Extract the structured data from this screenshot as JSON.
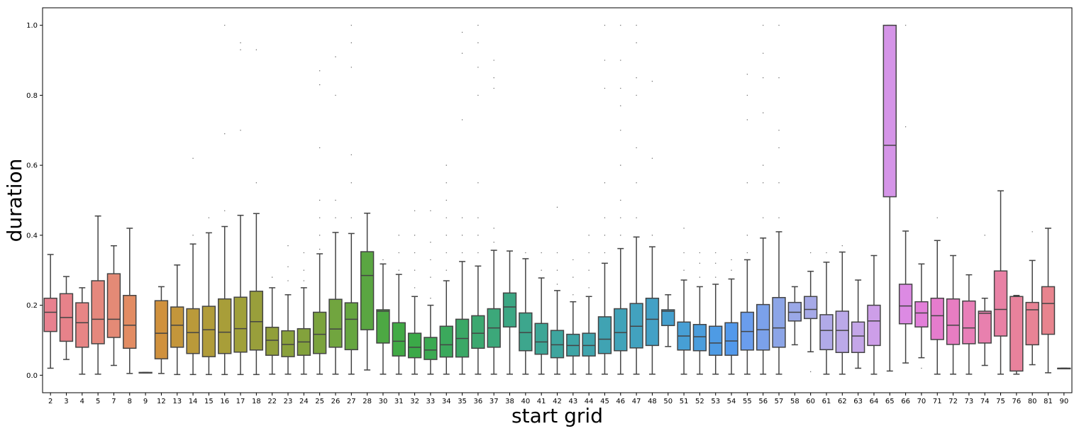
{
  "chart_data": {
    "type": "box",
    "xlabel": "start grid",
    "ylabel": "duration",
    "ylim": [
      -0.05,
      1.05
    ],
    "yticks": [
      0.0,
      0.2,
      0.4,
      0.6,
      0.8,
      1.0
    ],
    "ytick_labels": [
      "0.0",
      "0.2",
      "0.4",
      "0.6",
      "0.8",
      "1.0"
    ],
    "grid": false,
    "legend": "none",
    "categories": [
      "2",
      "3",
      "4",
      "5",
      "7",
      "8",
      "9",
      "12",
      "13",
      "14",
      "15",
      "16",
      "17",
      "18",
      "22",
      "23",
      "24",
      "25",
      "26",
      "27",
      "28",
      "30",
      "31",
      "32",
      "33",
      "34",
      "35",
      "36",
      "37",
      "38",
      "40",
      "41",
      "42",
      "43",
      "44",
      "45",
      "46",
      "47",
      "48",
      "50",
      "51",
      "52",
      "53",
      "54",
      "55",
      "56",
      "57",
      "58",
      "60",
      "61",
      "62",
      "63",
      "64",
      "65",
      "66",
      "70",
      "71",
      "72",
      "73",
      "74",
      "75",
      "76",
      "80",
      "81",
      "90"
    ],
    "boxes": [
      {
        "q1": 0.125,
        "median": 0.18,
        "q3": 0.22,
        "whislo": 0.02,
        "whishi": 0.345,
        "color": "#e8818f",
        "outliers": []
      },
      {
        "q1": 0.097,
        "median": 0.165,
        "q3": 0.233,
        "whislo": 0.045,
        "whishi": 0.282,
        "color": "#e7828a",
        "outliers": []
      },
      {
        "q1": 0.08,
        "median": 0.15,
        "q3": 0.207,
        "whislo": 0.003,
        "whishi": 0.25,
        "color": "#e78585",
        "outliers": []
      },
      {
        "q1": 0.09,
        "median": 0.16,
        "q3": 0.27,
        "whislo": 0.003,
        "whishi": 0.455,
        "color": "#e5887d",
        "outliers": []
      },
      {
        "q1": 0.108,
        "median": 0.16,
        "q3": 0.29,
        "whislo": 0.028,
        "whishi": 0.37,
        "color": "#e48a76",
        "outliers": []
      },
      {
        "q1": 0.077,
        "median": 0.143,
        "q3": 0.228,
        "whislo": 0.005,
        "whishi": 0.42,
        "color": "#e28c63",
        "outliers": []
      },
      {
        "q1": 0.007,
        "median": 0.007,
        "q3": 0.008,
        "whislo": 0.007,
        "whishi": 0.008,
        "color": "#db8f4f",
        "outliers": []
      },
      {
        "q1": 0.047,
        "median": 0.12,
        "q3": 0.213,
        "whislo": 0.005,
        "whishi": 0.253,
        "color": "#d0913d",
        "outliers": []
      },
      {
        "q1": 0.08,
        "median": 0.143,
        "q3": 0.195,
        "whislo": 0.002,
        "whishi": 0.315,
        "color": "#c4963b",
        "outliers": []
      },
      {
        "q1": 0.062,
        "median": 0.122,
        "q3": 0.19,
        "whislo": 0.002,
        "whishi": 0.375,
        "color": "#ba9a3a",
        "outliers": [
          0.4,
          0.62
        ]
      },
      {
        "q1": 0.053,
        "median": 0.13,
        "q3": 0.197,
        "whislo": 0.002,
        "whishi": 0.407,
        "color": "#b19c39",
        "outliers": [
          0.45
        ]
      },
      {
        "q1": 0.062,
        "median": 0.123,
        "q3": 0.218,
        "whislo": 0.002,
        "whishi": 0.425,
        "color": "#a89e39",
        "outliers": [
          0.47,
          0.69,
          1.0
        ]
      },
      {
        "q1": 0.066,
        "median": 0.133,
        "q3": 0.223,
        "whislo": 0.002,
        "whishi": 0.457,
        "color": "#a0a03a",
        "outliers": [
          0.7,
          0.93,
          0.95
        ]
      },
      {
        "q1": 0.072,
        "median": 0.153,
        "q3": 0.24,
        "whislo": 0.002,
        "whishi": 0.462,
        "color": "#999f3b",
        "outliers": [
          0.55,
          0.93
        ]
      },
      {
        "q1": 0.057,
        "median": 0.1,
        "q3": 0.137,
        "whislo": 0.003,
        "whishi": 0.25,
        "color": "#919f3a",
        "outliers": [
          0.28
        ]
      },
      {
        "q1": 0.053,
        "median": 0.088,
        "q3": 0.127,
        "whislo": 0.003,
        "whishi": 0.23,
        "color": "#8aa13b",
        "outliers": [
          0.27,
          0.31,
          0.37
        ]
      },
      {
        "q1": 0.057,
        "median": 0.095,
        "q3": 0.133,
        "whislo": 0.003,
        "whishi": 0.25,
        "color": "#83a23c",
        "outliers": [
          0.27,
          0.3,
          0.35
        ]
      },
      {
        "q1": 0.062,
        "median": 0.117,
        "q3": 0.18,
        "whislo": 0.003,
        "whishi": 0.347,
        "color": "#7ba33d",
        "outliers": [
          0.36,
          0.4,
          0.45,
          0.5,
          0.65,
          0.83,
          0.87
        ]
      },
      {
        "q1": 0.08,
        "median": 0.132,
        "q3": 0.217,
        "whislo": 0.003,
        "whishi": 0.408,
        "color": "#71a53f",
        "outliers": [
          0.45,
          0.5,
          0.8,
          0.91
        ]
      },
      {
        "q1": 0.073,
        "median": 0.16,
        "q3": 0.207,
        "whislo": 0.003,
        "whishi": 0.405,
        "color": "#66a640",
        "outliers": [
          0.45,
          0.55,
          0.63,
          0.88,
          0.95,
          1.0
        ]
      },
      {
        "q1": 0.13,
        "median": 0.285,
        "q3": 0.353,
        "whislo": 0.015,
        "whishi": 0.463,
        "color": "#5aa642",
        "outliers": []
      },
      {
        "q1": 0.092,
        "median": 0.183,
        "q3": 0.187,
        "whislo": 0.003,
        "whishi": 0.318,
        "color": "#4da843",
        "outliers": [
          0.33
        ]
      },
      {
        "q1": 0.055,
        "median": 0.097,
        "q3": 0.15,
        "whislo": 0.003,
        "whishi": 0.288,
        "color": "#41aa45",
        "outliers": [
          0.3,
          0.35,
          0.4
        ]
      },
      {
        "q1": 0.05,
        "median": 0.08,
        "q3": 0.12,
        "whislo": 0.003,
        "whishi": 0.225,
        "color": "#3ba948",
        "outliers": [
          0.25,
          0.3,
          0.35,
          0.4,
          0.47
        ]
      },
      {
        "q1": 0.045,
        "median": 0.072,
        "q3": 0.108,
        "whislo": 0.003,
        "whishi": 0.2,
        "color": "#3ba952",
        "outliers": [
          0.22,
          0.28,
          0.33,
          0.38,
          0.47
        ]
      },
      {
        "q1": 0.052,
        "median": 0.087,
        "q3": 0.14,
        "whislo": 0.003,
        "whishi": 0.27,
        "color": "#3ba95c",
        "outliers": [
          0.3,
          0.35,
          0.4,
          0.45,
          0.5,
          0.55,
          0.6
        ]
      },
      {
        "q1": 0.052,
        "median": 0.105,
        "q3": 0.16,
        "whislo": 0.003,
        "whishi": 0.325,
        "color": "#3ba866",
        "outliers": [
          0.35,
          0.4,
          0.45,
          0.73,
          0.92,
          0.98
        ]
      },
      {
        "q1": 0.077,
        "median": 0.12,
        "q3": 0.17,
        "whislo": 0.003,
        "whishi": 0.312,
        "color": "#3ca870",
        "outliers": [
          0.35,
          0.4,
          0.45,
          0.55,
          0.8,
          0.88,
          0.95,
          1.0
        ]
      },
      {
        "q1": 0.08,
        "median": 0.135,
        "q3": 0.19,
        "whislo": 0.003,
        "whishi": 0.357,
        "color": "#3ca87a",
        "outliers": [
          0.38,
          0.42,
          0.82,
          0.85,
          0.9
        ]
      },
      {
        "q1": 0.138,
        "median": 0.195,
        "q3": 0.235,
        "whislo": 0.003,
        "whishi": 0.355,
        "color": "#3ca784",
        "outliers": []
      },
      {
        "q1": 0.07,
        "median": 0.122,
        "q3": 0.178,
        "whislo": 0.003,
        "whishi": 0.333,
        "color": "#3da68d",
        "outliers": [
          0.35
        ]
      },
      {
        "q1": 0.06,
        "median": 0.095,
        "q3": 0.148,
        "whislo": 0.003,
        "whishi": 0.278,
        "color": "#3da696",
        "outliers": [
          0.3,
          0.35
        ]
      },
      {
        "q1": 0.05,
        "median": 0.087,
        "q3": 0.128,
        "whislo": 0.003,
        "whishi": 0.242,
        "color": "#3ea59e",
        "outliers": [
          0.26,
          0.3,
          0.35,
          0.48
        ]
      },
      {
        "q1": 0.055,
        "median": 0.085,
        "q3": 0.117,
        "whislo": 0.003,
        "whishi": 0.21,
        "color": "#3ea5a6",
        "outliers": [
          0.23,
          0.28,
          0.33
        ]
      },
      {
        "q1": 0.055,
        "median": 0.085,
        "q3": 0.12,
        "whislo": 0.003,
        "whishi": 0.225,
        "color": "#3fa4ad",
        "outliers": [
          0.25,
          0.3,
          0.35,
          0.4
        ]
      },
      {
        "q1": 0.062,
        "median": 0.103,
        "q3": 0.167,
        "whislo": 0.003,
        "whishi": 0.32,
        "color": "#40a3b3",
        "outliers": [
          0.35,
          0.4,
          0.45,
          0.55,
          0.82,
          0.9,
          1.0
        ]
      },
      {
        "q1": 0.07,
        "median": 0.122,
        "q3": 0.19,
        "whislo": 0.003,
        "whishi": 0.362,
        "color": "#41a3b9",
        "outliers": [
          0.4,
          0.45,
          0.5,
          0.6,
          0.7,
          0.77,
          0.82,
          0.9,
          1.0
        ]
      },
      {
        "q1": 0.078,
        "median": 0.14,
        "q3": 0.205,
        "whislo": 0.003,
        "whishi": 0.395,
        "color": "#42a2bf",
        "outliers": [
          0.45,
          0.55,
          0.65,
          0.8,
          0.85,
          0.95,
          1.0
        ]
      },
      {
        "q1": 0.085,
        "median": 0.16,
        "q3": 0.22,
        "whislo": 0.003,
        "whishi": 0.367,
        "color": "#43a1c6",
        "outliers": [
          0.4,
          0.62,
          0.84
        ]
      },
      {
        "q1": 0.142,
        "median": 0.183,
        "q3": 0.187,
        "whislo": 0.082,
        "whishi": 0.23,
        "color": "#45a0ce",
        "outliers": []
      },
      {
        "q1": 0.072,
        "median": 0.112,
        "q3": 0.152,
        "whislo": 0.003,
        "whishi": 0.272,
        "color": "#479fd5",
        "outliers": [
          0.3,
          0.35,
          0.42
        ]
      },
      {
        "q1": 0.07,
        "median": 0.11,
        "q3": 0.145,
        "whislo": 0.003,
        "whishi": 0.253,
        "color": "#4a9ddc",
        "outliers": [
          0.28,
          0.32,
          0.35
        ]
      },
      {
        "q1": 0.057,
        "median": 0.092,
        "q3": 0.14,
        "whislo": 0.003,
        "whishi": 0.26,
        "color": "#4e9be4",
        "outliers": [
          0.28,
          0.32,
          0.35
        ]
      },
      {
        "q1": 0.057,
        "median": 0.098,
        "q3": 0.15,
        "whislo": 0.003,
        "whishi": 0.275,
        "color": "#5399eb",
        "outliers": [
          0.3,
          0.33
        ]
      },
      {
        "q1": 0.072,
        "median": 0.125,
        "q3": 0.18,
        "whislo": 0.003,
        "whishi": 0.33,
        "color": "#6a9ded",
        "outliers": [
          0.35,
          0.4,
          0.55,
          0.73,
          0.8,
          0.86
        ]
      },
      {
        "q1": 0.072,
        "median": 0.13,
        "q3": 0.202,
        "whislo": 0.003,
        "whishi": 0.392,
        "color": "#7ba1ea",
        "outliers": [
          0.45,
          0.55,
          0.6,
          0.75,
          0.85,
          0.92,
          1.0
        ]
      },
      {
        "q1": 0.08,
        "median": 0.135,
        "q3": 0.222,
        "whislo": 0.003,
        "whishi": 0.41,
        "color": "#8ca5e7",
        "outliers": [
          0.45,
          0.55,
          0.65,
          0.7,
          0.85,
          1.0
        ]
      },
      {
        "q1": 0.155,
        "median": 0.18,
        "q3": 0.208,
        "whislo": 0.087,
        "whishi": 0.253,
        "color": "#9aa8e7",
        "outliers": []
      },
      {
        "q1": 0.162,
        "median": 0.188,
        "q3": 0.225,
        "whislo": 0.067,
        "whishi": 0.297,
        "color": "#a6a9e7",
        "outliers": [
          0.01,
          0.35
        ]
      },
      {
        "q1": 0.073,
        "median": 0.128,
        "q3": 0.173,
        "whislo": 0.003,
        "whishi": 0.323,
        "color": "#b1aae8",
        "outliers": [
          0.35
        ]
      },
      {
        "q1": 0.065,
        "median": 0.128,
        "q3": 0.183,
        "whislo": 0.003,
        "whishi": 0.352,
        "color": "#bba9e8",
        "outliers": [
          0.37
        ]
      },
      {
        "q1": 0.065,
        "median": 0.112,
        "q3": 0.152,
        "whislo": 0.02,
        "whishi": 0.272,
        "color": "#c4a6e8",
        "outliers": []
      },
      {
        "q1": 0.085,
        "median": 0.155,
        "q3": 0.2,
        "whislo": 0.003,
        "whishi": 0.342,
        "color": "#cd9ee8",
        "outliers": []
      },
      {
        "q1": 0.51,
        "median": 0.657,
        "q3": 1.0,
        "whislo": 0.012,
        "whishi": 1.0,
        "color": "#d595e8",
        "outliers": []
      },
      {
        "q1": 0.147,
        "median": 0.198,
        "q3": 0.26,
        "whislo": 0.035,
        "whishi": 0.412,
        "color": "#dc8ae3",
        "outliers": [
          0.71,
          1.0
        ]
      },
      {
        "q1": 0.138,
        "median": 0.178,
        "q3": 0.21,
        "whislo": 0.05,
        "whishi": 0.318,
        "color": "#e27fd9",
        "outliers": [
          0.02
        ]
      },
      {
        "q1": 0.102,
        "median": 0.17,
        "q3": 0.22,
        "whislo": 0.003,
        "whishi": 0.385,
        "color": "#e57ccd",
        "outliers": [
          0.45
        ]
      },
      {
        "q1": 0.088,
        "median": 0.143,
        "q3": 0.218,
        "whislo": 0.003,
        "whishi": 0.342,
        "color": "#e77dc2",
        "outliers": []
      },
      {
        "q1": 0.09,
        "median": 0.135,
        "q3": 0.212,
        "whislo": 0.003,
        "whishi": 0.287,
        "color": "#e87fb8",
        "outliers": []
      },
      {
        "q1": 0.092,
        "median": 0.177,
        "q3": 0.183,
        "whislo": 0.028,
        "whishi": 0.22,
        "color": "#e880ae",
        "outliers": [
          0.4
        ]
      },
      {
        "q1": 0.112,
        "median": 0.188,
        "q3": 0.298,
        "whislo": 0.003,
        "whishi": 0.527,
        "color": "#e881a5",
        "outliers": []
      },
      {
        "q1": 0.012,
        "median": 0.225,
        "q3": 0.225,
        "whislo": 0.003,
        "whishi": 0.228,
        "color": "#e8829c",
        "outliers": []
      },
      {
        "q1": 0.087,
        "median": 0.187,
        "q3": 0.208,
        "whislo": 0.03,
        "whishi": 0.328,
        "color": "#e88395",
        "outliers": [
          0.41
        ]
      },
      {
        "q1": 0.117,
        "median": 0.205,
        "q3": 0.253,
        "whislo": 0.007,
        "whishi": 0.42,
        "color": "#e8848e",
        "outliers": []
      },
      {
        "q1": 0.02,
        "median": 0.02,
        "q3": 0.02,
        "whislo": 0.02,
        "whishi": 0.02,
        "color": "#e88589",
        "outliers": []
      }
    ]
  }
}
